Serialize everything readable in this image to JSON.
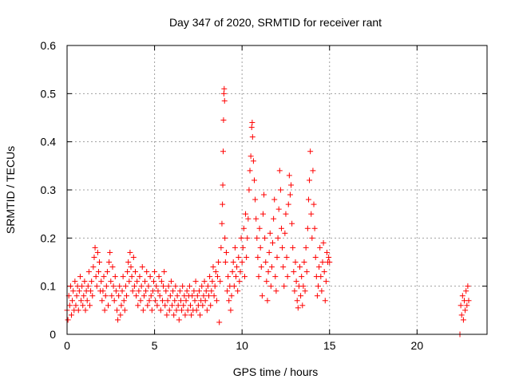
{
  "chart_data": {
    "type": "scatter",
    "title": "Day 347 of 2020, SRMTID for receiver rant",
    "xlabel": "GPS time / hours",
    "ylabel": "SRMTID / TECUs",
    "xlim": [
      0,
      24
    ],
    "ylim": [
      0,
      0.6
    ],
    "x_ticks": [
      0,
      5,
      10,
      15,
      20
    ],
    "x_tick_labels": [
      "0",
      "5",
      "10",
      "15",
      "20"
    ],
    "y_ticks": [
      0,
      0.1,
      0.2,
      0.3,
      0.4,
      0.5,
      0.6
    ],
    "y_tick_labels": [
      "0",
      "0.1",
      "0.2",
      "0.3",
      "0.4",
      "0.5",
      "0.6"
    ],
    "grid": true,
    "marker": "+",
    "color": "#ff0000",
    "series": [
      {
        "name": "rant",
        "points": [
          [
            0.0,
            0.05
          ],
          [
            0.05,
            0.03
          ],
          [
            0.1,
            0.08
          ],
          [
            0.15,
            0.06
          ],
          [
            0.2,
            0.1
          ],
          [
            0.25,
            0.04
          ],
          [
            0.3,
            0.07
          ],
          [
            0.35,
            0.09
          ],
          [
            0.4,
            0.05
          ],
          [
            0.45,
            0.11
          ],
          [
            0.5,
            0.06
          ],
          [
            0.55,
            0.08
          ],
          [
            0.6,
            0.1
          ],
          [
            0.65,
            0.05
          ],
          [
            0.7,
            0.09
          ],
          [
            0.75,
            0.12
          ],
          [
            0.8,
            0.07
          ],
          [
            0.85,
            0.1
          ],
          [
            0.9,
            0.06
          ],
          [
            0.95,
            0.08
          ],
          [
            1.0,
            0.11
          ],
          [
            1.05,
            0.05
          ],
          [
            1.1,
            0.09
          ],
          [
            1.15,
            0.07
          ],
          [
            1.2,
            0.1
          ],
          [
            1.25,
            0.13
          ],
          [
            1.3,
            0.06
          ],
          [
            1.35,
            0.09
          ],
          [
            1.4,
            0.11
          ],
          [
            1.45,
            0.08
          ],
          [
            1.5,
            0.14
          ],
          [
            1.55,
            0.16
          ],
          [
            1.6,
            0.18
          ],
          [
            1.65,
            0.12
          ],
          [
            1.7,
            0.1
          ],
          [
            1.75,
            0.17
          ],
          [
            1.8,
            0.13
          ],
          [
            1.85,
            0.15
          ],
          [
            1.9,
            0.09
          ],
          [
            1.95,
            0.11
          ],
          [
            2.0,
            0.07
          ],
          [
            2.05,
            0.09
          ],
          [
            2.1,
            0.12
          ],
          [
            2.15,
            0.05
          ],
          [
            2.2,
            0.08
          ],
          [
            2.25,
            0.1
          ],
          [
            2.3,
            0.13
          ],
          [
            2.35,
            0.06
          ],
          [
            2.4,
            0.15
          ],
          [
            2.45,
            0.17
          ],
          [
            2.5,
            0.11
          ],
          [
            2.55,
            0.08
          ],
          [
            2.6,
            0.14
          ],
          [
            2.65,
            0.1
          ],
          [
            2.7,
            0.07
          ],
          [
            2.75,
            0.12
          ],
          [
            2.8,
            0.09
          ],
          [
            2.85,
            0.05
          ],
          [
            2.9,
            0.03
          ],
          [
            2.95,
            0.08
          ],
          [
            3.0,
            0.1
          ],
          [
            3.05,
            0.04
          ],
          [
            3.1,
            0.06
          ],
          [
            3.15,
            0.09
          ],
          [
            3.2,
            0.12
          ],
          [
            3.25,
            0.07
          ],
          [
            3.3,
            0.05
          ],
          [
            3.35,
            0.1
          ],
          [
            3.4,
            0.08
          ],
          [
            3.45,
            0.13
          ],
          [
            3.5,
            0.15
          ],
          [
            3.55,
            0.11
          ],
          [
            3.6,
            0.17
          ],
          [
            3.65,
            0.14
          ],
          [
            3.7,
            0.12
          ],
          [
            3.75,
            0.09
          ],
          [
            3.8,
            0.16
          ],
          [
            3.85,
            0.1
          ],
          [
            3.9,
            0.13
          ],
          [
            3.95,
            0.08
          ],
          [
            4.0,
            0.11
          ],
          [
            4.05,
            0.06
          ],
          [
            4.1,
            0.09
          ],
          [
            4.15,
            0.12
          ],
          [
            4.2,
            0.07
          ],
          [
            4.25,
            0.1
          ],
          [
            4.3,
            0.14
          ],
          [
            4.35,
            0.05
          ],
          [
            4.4,
            0.08
          ],
          [
            4.45,
            0.11
          ],
          [
            4.5,
            0.09
          ],
          [
            4.55,
            0.13
          ],
          [
            4.6,
            0.06
          ],
          [
            4.65,
            0.1
          ],
          [
            4.7,
            0.07
          ],
          [
            4.75,
            0.12
          ],
          [
            4.8,
            0.08
          ],
          [
            4.85,
            0.05
          ],
          [
            4.9,
            0.09
          ],
          [
            4.95,
            0.11
          ],
          [
            5.0,
            0.13
          ],
          [
            5.05,
            0.07
          ],
          [
            5.1,
            0.1
          ],
          [
            5.15,
            0.06
          ],
          [
            5.2,
            0.09
          ],
          [
            5.25,
            0.12
          ],
          [
            5.3,
            0.08
          ],
          [
            5.35,
            0.05
          ],
          [
            5.4,
            0.11
          ],
          [
            5.45,
            0.07
          ],
          [
            5.5,
            0.1
          ],
          [
            5.55,
            0.13
          ],
          [
            5.6,
            0.06
          ],
          [
            5.65,
            0.09
          ],
          [
            5.7,
            0.04
          ],
          [
            5.75,
            0.07
          ],
          [
            5.8,
            0.1
          ],
          [
            5.85,
            0.05
          ],
          [
            5.9,
            0.08
          ],
          [
            5.95,
            0.11
          ],
          [
            6.0,
            0.06
          ],
          [
            6.05,
            0.09
          ],
          [
            6.1,
            0.04
          ],
          [
            6.15,
            0.07
          ],
          [
            6.2,
            0.1
          ],
          [
            6.25,
            0.05
          ],
          [
            6.3,
            0.08
          ],
          [
            6.35,
            0.06
          ],
          [
            6.4,
            0.03
          ],
          [
            6.45,
            0.09
          ],
          [
            6.5,
            0.07
          ],
          [
            6.55,
            0.05
          ],
          [
            6.6,
            0.1
          ],
          [
            6.65,
            0.06
          ],
          [
            6.7,
            0.08
          ],
          [
            6.75,
            0.04
          ],
          [
            6.8,
            0.07
          ],
          [
            6.85,
            0.09
          ],
          [
            6.9,
            0.05
          ],
          [
            6.95,
            0.08
          ],
          [
            7.0,
            0.1
          ],
          [
            7.05,
            0.06
          ],
          [
            7.1,
            0.04
          ],
          [
            7.15,
            0.08
          ],
          [
            7.2,
            0.05
          ],
          [
            7.25,
            0.09
          ],
          [
            7.3,
            0.07
          ],
          [
            7.35,
            0.11
          ],
          [
            7.4,
            0.05
          ],
          [
            7.45,
            0.08
          ],
          [
            7.5,
            0.06
          ],
          [
            7.55,
            0.09
          ],
          [
            7.6,
            0.04
          ],
          [
            7.65,
            0.07
          ],
          [
            7.7,
            0.1
          ],
          [
            7.75,
            0.06
          ],
          [
            7.8,
            0.08
          ],
          [
            7.85,
            0.11
          ],
          [
            7.9,
            0.07
          ],
          [
            7.95,
            0.09
          ],
          [
            8.0,
            0.05
          ],
          [
            8.05,
            0.1
          ],
          [
            8.1,
            0.08
          ],
          [
            8.15,
            0.12
          ],
          [
            8.2,
            0.06
          ],
          [
            8.25,
            0.09
          ],
          [
            8.3,
            0.11
          ],
          [
            8.35,
            0.14
          ],
          [
            8.4,
            0.08
          ],
          [
            8.45,
            0.1
          ],
          [
            8.5,
            0.13
          ],
          [
            8.55,
            0.07
          ],
          [
            8.6,
            0.12
          ],
          [
            8.65,
            0.15
          ],
          [
            8.7,
            0.025
          ],
          [
            8.75,
            0.11
          ],
          [
            8.8,
            0.18
          ],
          [
            8.85,
            0.23
          ],
          [
            8.88,
            0.27
          ],
          [
            8.9,
            0.31
          ],
          [
            8.92,
            0.38
          ],
          [
            8.94,
            0.445
          ],
          [
            8.96,
            0.5
          ],
          [
            8.98,
            0.51
          ],
          [
            9.0,
            0.485
          ],
          [
            9.02,
            0.2
          ],
          [
            9.05,
            0.15
          ],
          [
            9.1,
            0.17
          ],
          [
            9.15,
            0.09
          ],
          [
            9.2,
            0.12
          ],
          [
            9.25,
            0.07
          ],
          [
            9.3,
            0.1
          ],
          [
            9.35,
            0.05
          ],
          [
            9.4,
            0.08
          ],
          [
            9.45,
            0.13
          ],
          [
            9.5,
            0.15
          ],
          [
            9.55,
            0.1
          ],
          [
            9.6,
            0.18
          ],
          [
            9.65,
            0.12
          ],
          [
            9.7,
            0.14
          ],
          [
            9.75,
            0.09
          ],
          [
            9.8,
            0.16
          ],
          [
            9.85,
            0.11
          ],
          [
            9.9,
            0.13
          ],
          [
            9.95,
            0.2
          ],
          [
            10.0,
            0.15
          ],
          [
            10.05,
            0.18
          ],
          [
            10.1,
            0.22
          ],
          [
            10.15,
            0.12
          ],
          [
            10.2,
            0.25
          ],
          [
            10.25,
            0.16
          ],
          [
            10.3,
            0.2
          ],
          [
            10.35,
            0.24
          ],
          [
            10.4,
            0.3
          ],
          [
            10.45,
            0.34
          ],
          [
            10.5,
            0.37
          ],
          [
            10.55,
            0.43
          ],
          [
            10.58,
            0.44
          ],
          [
            10.6,
            0.41
          ],
          [
            10.65,
            0.36
          ],
          [
            10.7,
            0.32
          ],
          [
            10.75,
            0.28
          ],
          [
            10.8,
            0.24
          ],
          [
            10.85,
            0.2
          ],
          [
            10.9,
            0.16
          ],
          [
            10.95,
            0.12
          ],
          [
            11.0,
            0.22
          ],
          [
            11.05,
            0.18
          ],
          [
            11.1,
            0.14
          ],
          [
            11.15,
            0.08
          ],
          [
            11.2,
            0.25
          ],
          [
            11.25,
            0.29
          ],
          [
            11.3,
            0.2
          ],
          [
            11.35,
            0.15
          ],
          [
            11.4,
            0.11
          ],
          [
            11.45,
            0.07
          ],
          [
            11.5,
            0.13
          ],
          [
            11.55,
            0.17
          ],
          [
            11.6,
            0.21
          ],
          [
            11.65,
            0.1
          ],
          [
            11.7,
            0.14
          ],
          [
            11.75,
            0.19
          ],
          [
            11.8,
            0.24
          ],
          [
            11.85,
            0.28
          ],
          [
            11.9,
            0.12
          ],
          [
            11.95,
            0.09
          ],
          [
            12.0,
            0.16
          ],
          [
            12.05,
            0.2
          ],
          [
            12.1,
            0.26
          ],
          [
            12.15,
            0.34
          ],
          [
            12.2,
            0.3
          ],
          [
            12.25,
            0.22
          ],
          [
            12.3,
            0.18
          ],
          [
            12.35,
            0.14
          ],
          [
            12.4,
            0.1
          ],
          [
            12.45,
            0.21
          ],
          [
            12.5,
            0.25
          ],
          [
            12.55,
            0.16
          ],
          [
            12.6,
            0.12
          ],
          [
            12.65,
            0.27
          ],
          [
            12.7,
            0.33
          ],
          [
            12.75,
            0.29
          ],
          [
            12.8,
            0.31
          ],
          [
            12.85,
            0.23
          ],
          [
            12.9,
            0.18
          ],
          [
            12.95,
            0.13
          ],
          [
            13.0,
            0.09
          ],
          [
            13.05,
            0.15
          ],
          [
            13.1,
            0.11
          ],
          [
            13.15,
            0.07
          ],
          [
            13.2,
            0.055
          ],
          [
            13.25,
            0.1
          ],
          [
            13.3,
            0.14
          ],
          [
            13.35,
            0.08
          ],
          [
            13.4,
            0.12
          ],
          [
            13.45,
            0.06
          ],
          [
            13.5,
            0.1
          ],
          [
            13.55,
            0.15
          ],
          [
            13.6,
            0.09
          ],
          [
            13.65,
            0.18
          ],
          [
            13.7,
            0.13
          ],
          [
            13.75,
            0.22
          ],
          [
            13.8,
            0.28
          ],
          [
            13.85,
            0.32
          ],
          [
            13.9,
            0.38
          ],
          [
            13.95,
            0.25
          ],
          [
            14.0,
            0.2
          ],
          [
            14.05,
            0.34
          ],
          [
            14.1,
            0.27
          ],
          [
            14.15,
            0.22
          ],
          [
            14.2,
            0.16
          ],
          [
            14.25,
            0.12
          ],
          [
            14.3,
            0.08
          ],
          [
            14.35,
            0.1
          ],
          [
            14.4,
            0.14
          ],
          [
            14.45,
            0.18
          ],
          [
            14.5,
            0.12
          ],
          [
            14.55,
            0.09
          ],
          [
            14.6,
            0.15
          ],
          [
            14.65,
            0.19
          ],
          [
            14.7,
            0.13
          ],
          [
            14.75,
            0.07
          ],
          [
            14.8,
            0.11
          ],
          [
            14.85,
            0.17
          ],
          [
            14.9,
            0.15
          ],
          [
            14.95,
            0.16
          ],
          [
            15.0,
            0.15
          ],
          [
            22.45,
            0.0
          ],
          [
            22.5,
            0.06
          ],
          [
            22.55,
            0.04
          ],
          [
            22.6,
            0.08
          ],
          [
            22.65,
            0.03
          ],
          [
            22.7,
            0.07
          ],
          [
            22.75,
            0.05
          ],
          [
            22.8,
            0.09
          ],
          [
            22.85,
            0.06
          ],
          [
            22.9,
            0.1
          ],
          [
            22.95,
            0.07
          ]
        ]
      }
    ]
  }
}
